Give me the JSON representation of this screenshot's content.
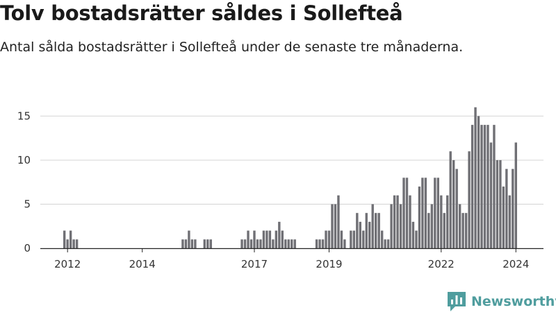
{
  "header": {
    "title": "Tolv bostadsrätter såldes i Sollefteå",
    "subtitle": "Antal sålda bostadsrätter i Sollefteå under de senaste tre månaderna."
  },
  "brand": {
    "name": "Newsworthy",
    "icon": "newsworthy-logo-icon",
    "color": "#4f9d9e"
  },
  "colors": {
    "bar": "#707075",
    "highlight": "#2a9d96",
    "grid": "#d4d4d4",
    "axis": "#222222"
  },
  "chart_data": {
    "type": "bar",
    "ylim": [
      0,
      17
    ],
    "yticks": [
      0,
      5,
      10,
      15
    ],
    "xticks": [
      {
        "label": "2012",
        "index": 1
      },
      {
        "label": "2014",
        "index": 25
      },
      {
        "label": "2017",
        "index": 61
      },
      {
        "label": "2019",
        "index": 85
      },
      {
        "label": "2022",
        "index": 121
      },
      {
        "label": "2024",
        "index": 145
      }
    ],
    "grid": true,
    "legend": "none",
    "highlight_index": 146,
    "highlight_label": "12",
    "values": [
      2,
      1,
      2,
      1,
      1,
      0,
      0,
      0,
      0,
      0,
      0,
      0,
      0,
      0,
      0,
      0,
      0,
      0,
      0,
      0,
      0,
      0,
      0,
      0,
      0,
      0,
      0,
      0,
      0,
      0,
      0,
      0,
      0,
      0,
      0,
      0,
      0,
      0,
      1,
      1,
      2,
      1,
      1,
      0,
      0,
      1,
      1,
      1,
      0,
      0,
      0,
      0,
      0,
      0,
      0,
      0,
      0,
      1,
      1,
      2,
      1,
      2,
      1,
      1,
      2,
      2,
      2,
      1,
      2,
      3,
      2,
      1,
      1,
      1,
      1,
      0,
      0,
      0,
      0,
      0,
      0,
      1,
      1,
      1,
      2,
      2,
      5,
      5,
      6,
      2,
      1,
      0,
      2,
      2,
      4,
      3,
      2,
      4,
      3,
      5,
      4,
      4,
      2,
      1,
      1,
      5,
      6,
      6,
      5,
      8,
      8,
      6,
      3,
      2,
      7,
      8,
      8,
      4,
      5,
      8,
      8,
      6,
      4,
      6,
      11,
      10,
      9,
      5,
      4,
      4,
      11,
      14,
      16,
      15,
      14,
      14,
      14,
      12,
      14,
      10,
      10,
      7,
      9,
      6,
      9,
      12
    ]
  }
}
